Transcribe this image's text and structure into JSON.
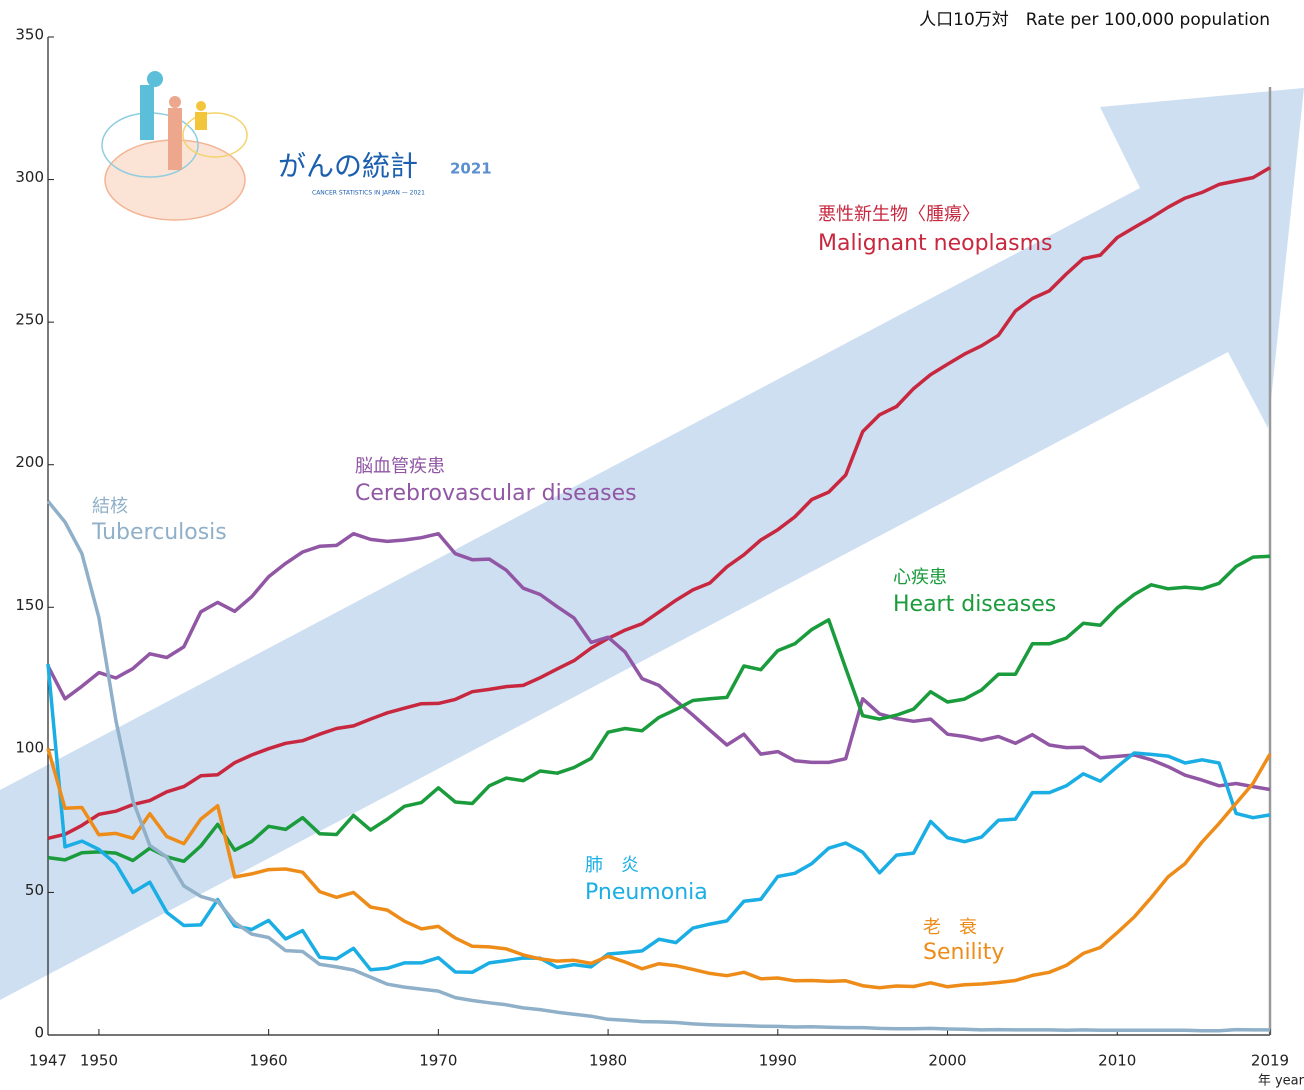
{
  "chart_data": {
    "type": "line",
    "y_label": "人口10万対　Rate per 100,000 population",
    "x_label": "年 year",
    "logo": {
      "title": "がんの統計",
      "year": "2021",
      "subtitle": "CANCER STATISTICS IN JAPAN — 2021"
    },
    "x": [
      1947,
      1948,
      1949,
      1950,
      1951,
      1952,
      1953,
      1954,
      1955,
      1956,
      1957,
      1958,
      1959,
      1960,
      1961,
      1962,
      1963,
      1964,
      1965,
      1966,
      1967,
      1968,
      1969,
      1970,
      1971,
      1972,
      1973,
      1974,
      1975,
      1976,
      1977,
      1978,
      1979,
      1980,
      1981,
      1982,
      1983,
      1984,
      1985,
      1986,
      1987,
      1988,
      1989,
      1990,
      1991,
      1992,
      1993,
      1994,
      1995,
      1996,
      1997,
      1998,
      1999,
      2000,
      2001,
      2002,
      2003,
      2004,
      2005,
      2006,
      2007,
      2008,
      2009,
      2010,
      2011,
      2012,
      2013,
      2014,
      2015,
      2016,
      2017,
      2018,
      2019
    ],
    "xlim": [
      1947,
      2019
    ],
    "xticks": [
      1947,
      1950,
      1960,
      1970,
      1980,
      1990,
      2000,
      2010,
      2019
    ],
    "ylim": [
      0,
      350
    ],
    "yticks": [
      0,
      50,
      100,
      150,
      200,
      250,
      300,
      350
    ],
    "grid": false,
    "series": [
      {
        "name": "Malignant neoplasms",
        "name_ja": "悪性新生物〈腫瘍〉",
        "color": "#c8283f",
        "values": [
          69.0,
          70.4,
          73.5,
          77.4,
          78.5,
          80.8,
          82.2,
          85.3,
          87.1,
          90.9,
          91.3,
          95.5,
          98.2,
          100.4,
          102.3,
          103.2,
          105.5,
          107.5,
          108.4,
          110.8,
          113.0,
          114.6,
          116.2,
          116.3,
          117.7,
          120.4,
          121.2,
          122.2,
          122.6,
          125.3,
          128.4,
          131.3,
          135.7,
          139.1,
          142.0,
          144.2,
          148.3,
          152.5,
          156.1,
          158.5,
          164.2,
          168.4,
          173.6,
          177.2,
          181.7,
          187.8,
          190.4,
          196.4,
          211.6,
          217.5,
          220.4,
          226.7,
          231.6,
          235.2,
          238.8,
          241.7,
          245.4,
          253.9,
          258.3,
          261.0,
          266.9,
          272.3,
          273.5,
          279.7,
          283.2,
          286.6,
          290.3,
          293.5,
          295.5,
          298.3,
          299.5,
          300.7,
          304.2
        ]
      },
      {
        "name": "Cerebrovascular diseases",
        "name_ja": "脳血管疾患",
        "color": "#9157a5",
        "values": [
          129.4,
          117.9,
          122.3,
          127.1,
          125.2,
          128.5,
          133.7,
          132.4,
          136.1,
          148.4,
          151.7,
          148.6,
          153.7,
          160.7,
          165.4,
          169.4,
          171.4,
          171.7,
          175.8,
          173.8,
          173.1,
          173.6,
          174.4,
          175.8,
          168.8,
          166.7,
          166.9,
          163.0,
          156.7,
          154.5,
          150.2,
          146.2,
          137.7,
          139.5,
          134.3,
          125.0,
          122.6,
          117.2,
          112.2,
          106.9,
          101.7,
          105.5,
          98.5,
          99.4,
          96.2,
          95.6,
          95.6,
          96.9,
          117.9,
          112.6,
          111.0,
          110.0,
          110.8,
          105.5,
          104.7,
          103.4,
          104.7,
          102.3,
          105.3,
          101.7,
          100.8,
          100.9,
          97.2,
          97.7,
          98.2,
          96.5,
          94.1,
          91.1,
          89.4,
          87.4,
          88.2,
          87.1,
          86.1
        ]
      },
      {
        "name": "Heart diseases",
        "name_ja": "心疾患",
        "color": "#1a9b3c",
        "values": [
          62.2,
          61.4,
          63.9,
          64.2,
          63.8,
          61.2,
          65.5,
          62.5,
          60.9,
          66.3,
          73.9,
          64.8,
          67.9,
          73.2,
          72.1,
          76.2,
          70.6,
          70.3,
          77.0,
          71.9,
          75.7,
          80.2,
          81.5,
          86.7,
          81.7,
          81.2,
          87.4,
          90.1,
          89.2,
          92.6,
          91.8,
          93.8,
          97.0,
          106.2,
          107.5,
          106.7,
          111.4,
          114.2,
          117.3,
          117.9,
          118.4,
          129.4,
          128.1,
          134.8,
          137.2,
          142.2,
          145.6,
          128.6,
          112.0,
          110.8,
          112.2,
          114.3,
          120.4,
          116.8,
          117.8,
          121.0,
          126.5,
          126.5,
          137.2,
          137.2,
          139.2,
          144.4,
          143.7,
          149.8,
          154.5,
          157.9,
          156.5,
          157.0,
          156.5,
          158.4,
          164.3,
          167.6,
          167.9
        ]
      },
      {
        "name": "Pneumonia",
        "name_ja": "肺　炎",
        "color": "#1aaee5",
        "values": [
          130.1,
          66.0,
          68.0,
          65.1,
          60.0,
          50.0,
          53.6,
          43.0,
          38.4,
          38.6,
          47.5,
          38.3,
          37.0,
          40.2,
          33.7,
          36.6,
          27.3,
          26.7,
          30.4,
          22.9,
          23.4,
          25.3,
          25.3,
          27.1,
          22.1,
          22.0,
          25.3,
          26.1,
          27.0,
          26.9,
          23.7,
          24.7,
          23.9,
          28.4,
          28.9,
          29.5,
          33.6,
          32.4,
          37.5,
          38.9,
          40.0,
          46.9,
          47.6,
          55.6,
          56.7,
          60.1,
          65.5,
          67.3,
          64.1,
          56.9,
          63.1,
          63.8,
          74.9,
          69.2,
          67.8,
          69.4,
          75.3,
          75.7,
          85.0,
          85.0,
          87.4,
          91.6,
          89.0,
          94.1,
          98.9,
          98.4,
          97.8,
          95.4,
          96.5,
          95.4,
          77.7,
          76.2,
          77.2
        ]
      },
      {
        "name": "Senility",
        "name_ja": "老　衰",
        "color": "#ee8c1a",
        "values": [
          100.5,
          79.5,
          79.8,
          70.2,
          70.7,
          69.0,
          77.6,
          69.6,
          67.1,
          75.7,
          80.4,
          55.4,
          56.5,
          58.0,
          58.2,
          57.1,
          50.3,
          48.3,
          50.0,
          44.9,
          43.8,
          39.9,
          37.2,
          38.1,
          34.0,
          31.1,
          30.9,
          30.2,
          28.1,
          26.7,
          25.9,
          26.2,
          25.1,
          27.6,
          25.6,
          23.2,
          25.0,
          24.3,
          23.0,
          21.6,
          20.8,
          22.0,
          19.7,
          20.0,
          19.0,
          19.1,
          18.8,
          19.0,
          17.3,
          16.6,
          17.2,
          17.0,
          18.3,
          16.9,
          17.6,
          17.9,
          18.4,
          19.1,
          20.9,
          22.0,
          24.4,
          28.6,
          30.7,
          35.9,
          41.4,
          48.2,
          55.5,
          60.1,
          67.7,
          74.2,
          81.3,
          88.2,
          98.5
        ]
      },
      {
        "name": "Tuberculosis",
        "name_ja": "結核",
        "color": "#8fb0c8",
        "values": [
          187.2,
          179.9,
          168.8,
          146.4,
          110.3,
          82.2,
          66.5,
          62.4,
          52.3,
          48.6,
          46.9,
          39.5,
          35.4,
          34.2,
          29.6,
          29.3,
          24.8,
          23.9,
          22.8,
          20.3,
          17.8,
          16.8,
          16.1,
          15.4,
          13.1,
          12.1,
          11.3,
          10.6,
          9.5,
          8.9,
          8.0,
          7.3,
          6.6,
          5.5,
          5.2,
          4.7,
          4.6,
          4.4,
          3.9,
          3.6,
          3.4,
          3.3,
          3.1,
          3.0,
          2.8,
          2.9,
          2.7,
          2.6,
          2.6,
          2.3,
          2.2,
          2.2,
          2.3,
          2.1,
          2.0,
          1.8,
          1.9,
          1.8,
          1.8,
          1.8,
          1.7,
          1.8,
          1.7,
          1.7,
          1.7,
          1.7,
          1.7,
          1.7,
          1.5,
          1.5,
          1.9,
          1.8,
          1.8
        ]
      }
    ]
  }
}
